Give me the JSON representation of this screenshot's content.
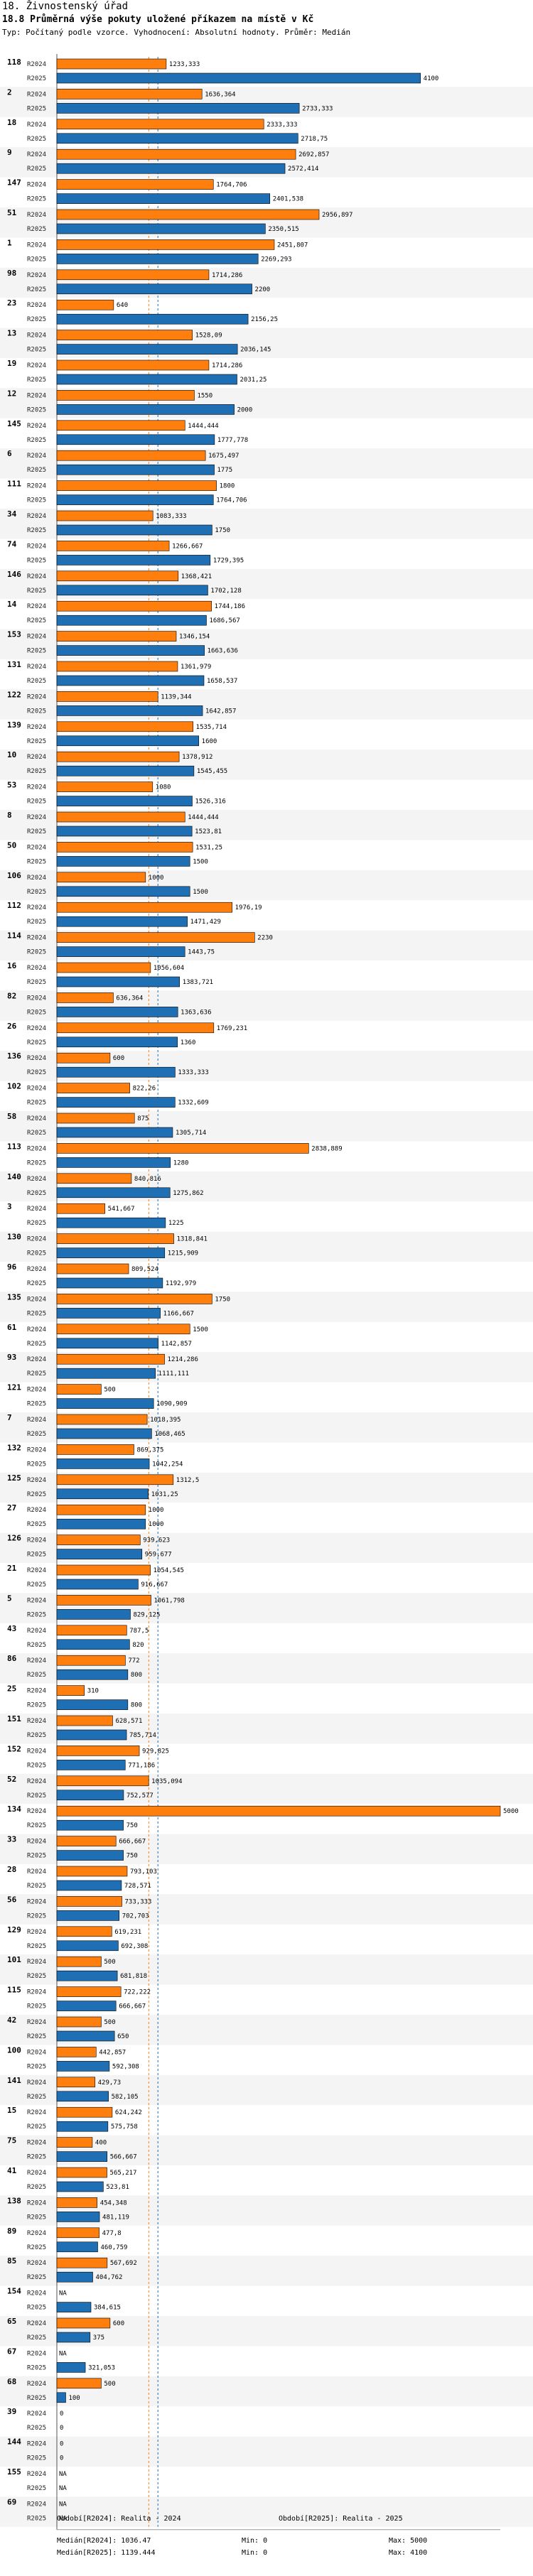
{
  "header": {
    "title": "18. Živnostenský úřad",
    "subtitle": "18.8 Průměrná výše pokuty uložené příkazem na místě v Kč",
    "note": "Typ: Počítaný podle vzorce. Vyhodnocení: Absolutní hodnoty. Průměr: Medián"
  },
  "chart_data": {
    "type": "bar",
    "orientation": "horizontal",
    "title": "18.8 Průměrná výše pokuty uložené příkazem na místě v Kč",
    "series_names": [
      "R2024",
      "R2025"
    ],
    "colors": {
      "R2024": "#ff7f0e",
      "R2025": "#1f6fb4"
    },
    "x_max": 5000,
    "missing_label": "NA",
    "median_lines": {
      "R2024": 1036.47,
      "R2025": 1139.444
    },
    "categories": [
      "118",
      "2",
      "18",
      "9",
      "147",
      "51",
      "1",
      "98",
      "23",
      "13",
      "19",
      "12",
      "145",
      "6",
      "111",
      "34",
      "74",
      "146",
      "14",
      "153",
      "131",
      "122",
      "139",
      "10",
      "53",
      "8",
      "50",
      "106",
      "112",
      "114",
      "16",
      "82",
      "26",
      "136",
      "102",
      "58",
      "113",
      "140",
      "3",
      "130",
      "96",
      "135",
      "61",
      "93",
      "121",
      "7",
      "132",
      "125",
      "27",
      "126",
      "21",
      "5",
      "43",
      "86",
      "25",
      "151",
      "152",
      "52",
      "134",
      "33",
      "28",
      "56",
      "129",
      "101",
      "115",
      "42",
      "100",
      "141",
      "15",
      "75",
      "41",
      "138",
      "89",
      "85",
      "154",
      "65",
      "67",
      "68",
      "39",
      "144",
      "155",
      "69"
    ],
    "series": [
      {
        "name": "R2024",
        "values": [
          1233.333,
          1636.364,
          2333.333,
          2692.857,
          1764.706,
          2956.897,
          2451.807,
          1714.286,
          640,
          1528.09,
          1714.286,
          1550,
          1444.444,
          1675.497,
          1800,
          1083.333,
          1266.667,
          1368.421,
          1744.186,
          1346.154,
          1361.979,
          1139.344,
          1535.714,
          1378.912,
          1080,
          1444.444,
          1531.25,
          1000,
          1976.19,
          2230,
          1056.604,
          636.364,
          1769.231,
          600,
          822.26,
          875,
          2838.889,
          840.816,
          541.667,
          1318.841,
          809.524,
          1750,
          1500,
          1214.286,
          500,
          1018.395,
          869.375,
          1312.5,
          1000,
          939.623,
          1054.545,
          1061.798,
          787.5,
          772,
          310,
          628.571,
          929.825,
          1035.094,
          5000,
          666.667,
          793.103,
          733.333,
          619.231,
          500,
          722.222,
          500,
          442.857,
          429.73,
          624.242,
          400,
          565.217,
          454.348,
          477.8,
          567.692,
          null,
          600,
          null,
          500,
          0,
          0,
          null,
          null
        ]
      },
      {
        "name": "R2025",
        "values": [
          4100,
          2733.333,
          2718.75,
          2572.414,
          2401.538,
          2350.515,
          2269.293,
          2200,
          2156.25,
          2036.145,
          2031.25,
          2000,
          1777.778,
          1775,
          1764.706,
          1750,
          1729.395,
          1702.128,
          1686.567,
          1663.636,
          1658.537,
          1642.857,
          1600,
          1545.455,
          1526.316,
          1523.81,
          1500,
          1500,
          1471.429,
          1443.75,
          1383.721,
          1363.636,
          1360,
          1333.333,
          1332.609,
          1305.714,
          1280,
          1275.862,
          1225,
          1215.909,
          1192.979,
          1166.667,
          1142.857,
          1111.111,
          1090.909,
          1068.465,
          1042.254,
          1031.25,
          1000,
          959.677,
          916.667,
          829.125,
          820,
          800,
          800,
          785.714,
          771.186,
          752.577,
          750,
          750,
          728.571,
          702.703,
          692.308,
          681.818,
          666.667,
          650,
          592.308,
          582.105,
          575.758,
          566.667,
          523.81,
          481.119,
          460.759,
          404.762,
          384.615,
          375,
          321.053,
          100,
          0,
          0,
          null,
          null
        ]
      }
    ]
  },
  "footer": {
    "legend_2024": "Období[R2024]: Realita - 2024",
    "legend_2025": "Období[R2025]: Realita - 2025",
    "median_2024": "Medián[R2024]: 1036.47",
    "median_2025": "Medián[R2025]: 1139.444",
    "min_2024": "Min: 0",
    "min_2025": "Min: 0",
    "max_2024": "Max: 5000",
    "max_2025": "Max: 4100"
  }
}
